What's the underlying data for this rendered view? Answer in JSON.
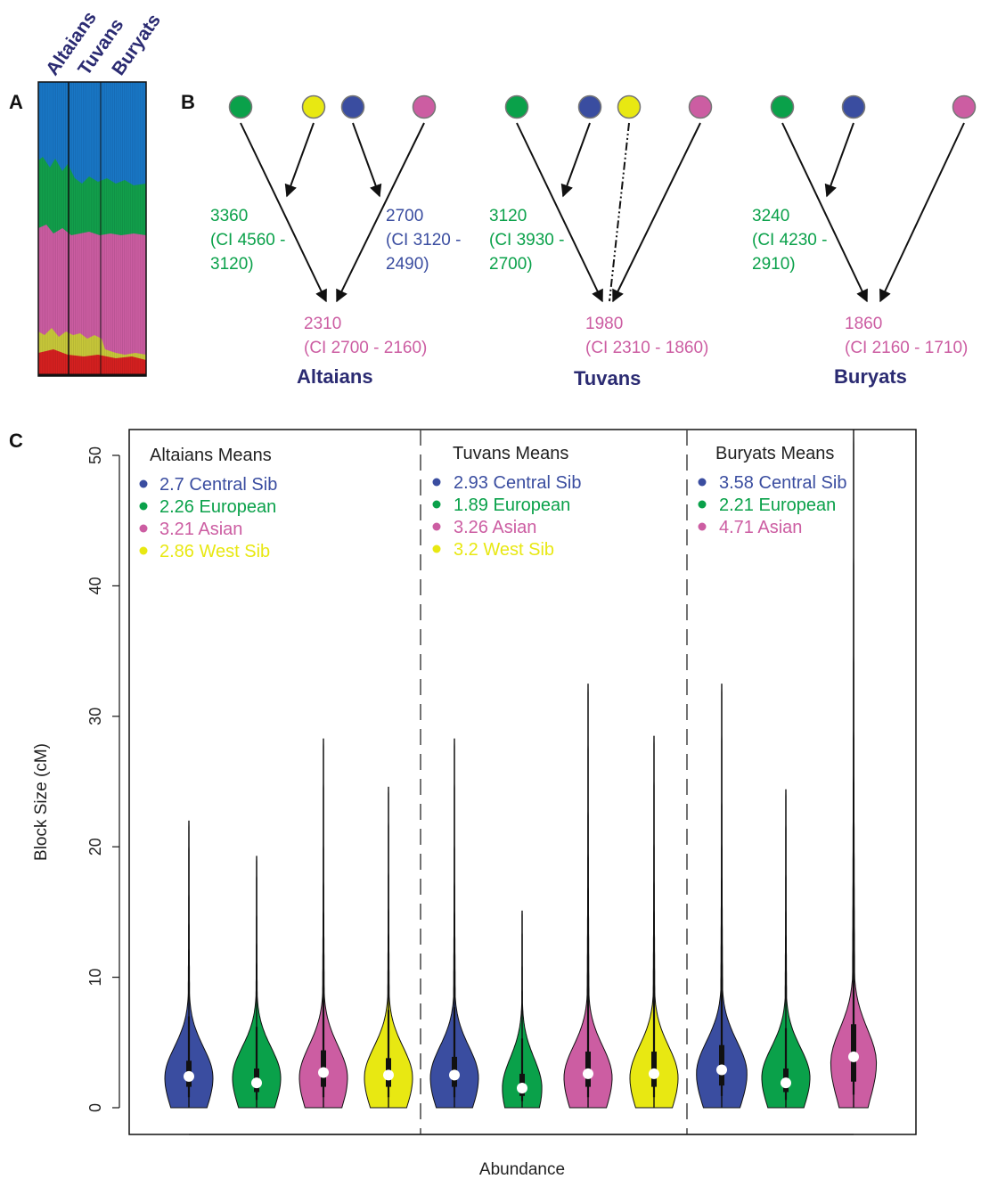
{
  "colors": {
    "central_sib": "#3a4da0",
    "european": "#0aa14a",
    "asian": "#cc5da2",
    "west_sib": "#e8e812",
    "label_navy": "#2b2b72",
    "structure_red": "#d62020"
  },
  "panelA": {
    "letter": "A",
    "population_labels": [
      "Altaians",
      "Tuvans",
      "Buryats"
    ]
  },
  "panelB": {
    "letter": "B",
    "trees": [
      {
        "population": "Altaians",
        "nodes": [
          "european",
          "west_sib",
          "central_sib",
          "asian"
        ],
        "migrations": [
          {
            "label_lines": [
              "3360",
              "(CI 4560 -",
              "3120)"
            ],
            "color_key": "european"
          },
          {
            "label_lines": [
              "2700",
              "(CI 3120 -",
              "2490)"
            ],
            "color_key": "central_sib"
          }
        ],
        "admixture_lines": [
          "2310",
          "(CI 2700 - 2160)"
        ]
      },
      {
        "population": "Tuvans",
        "nodes": [
          "european",
          "central_sib",
          "west_sib",
          "asian"
        ],
        "migrations": [
          {
            "label_lines": [
              "3120",
              "(CI 3930 -",
              "2700)"
            ],
            "color_key": "european"
          }
        ],
        "admixture_lines": [
          "1980",
          "(CI 2310 - 1860)"
        ]
      },
      {
        "population": "Buryats",
        "nodes": [
          "european",
          "central_sib",
          "asian"
        ],
        "migrations": [
          {
            "label_lines": [
              "3240",
              "(CI 4230 -",
              "2910)"
            ],
            "color_key": "european"
          }
        ],
        "admixture_lines": [
          "1860",
          "(CI 2160 - 1710)"
        ]
      }
    ]
  },
  "panelC": {
    "letter": "C"
  },
  "chart_data": {
    "type": "violin",
    "xlabel": "Abundance",
    "ylabel": "Block Size (cM)",
    "ylim": [
      0,
      52
    ],
    "yticks": [
      "0",
      "10",
      "20",
      "30",
      "40",
      "50"
    ],
    "grid": false,
    "groups": [
      {
        "name": "Altaians",
        "legend_title": "Altaians Means",
        "legend": [
          {
            "mean": "2.7",
            "label": "Central Sib",
            "color_key": "central_sib"
          },
          {
            "mean": "2.26",
            "label": "European",
            "color_key": "european"
          },
          {
            "mean": "3.21",
            "label": "Asian",
            "color_key": "asian"
          },
          {
            "mean": "2.86",
            "label": "West Sib",
            "color_key": "west_sib"
          }
        ]
      },
      {
        "name": "Tuvans",
        "legend_title": "Tuvans Means",
        "legend": [
          {
            "mean": "2.93",
            "label": "Central Sib",
            "color_key": "central_sib"
          },
          {
            "mean": "1.89",
            "label": "European",
            "color_key": "european"
          },
          {
            "mean": "3.26",
            "label": "Asian",
            "color_key": "asian"
          },
          {
            "mean": "3.2",
            "label": "West Sib",
            "color_key": "west_sib"
          }
        ]
      },
      {
        "name": "Buryats",
        "legend_title": "Buryats Means",
        "legend": [
          {
            "mean": "3.58",
            "label": "Central Sib",
            "color_key": "central_sib"
          },
          {
            "mean": "2.21",
            "label": "European",
            "color_key": "european"
          },
          {
            "mean": "4.71",
            "label": "Asian",
            "color_key": "asian"
          }
        ]
      }
    ],
    "violins": [
      {
        "group": "Altaians",
        "color_key": "central_sib",
        "min": 0,
        "q1": 1.6,
        "median": 2.4,
        "q3": 3.6,
        "whisker_low": 0.8,
        "whisker_high": 7,
        "max": 22,
        "mode": 2.3,
        "mode_density": 1.0
      },
      {
        "group": "Altaians",
        "color_key": "european",
        "min": 0,
        "q1": 1.2,
        "median": 1.9,
        "q3": 3.0,
        "whisker_low": 0.6,
        "whisker_high": 6.2,
        "max": 19.3,
        "mode": 2.3,
        "mode_density": 1.0
      },
      {
        "group": "Altaians",
        "color_key": "asian",
        "min": 0,
        "q1": 1.6,
        "median": 2.7,
        "q3": 4.4,
        "whisker_low": 0.8,
        "whisker_high": 8.6,
        "max": 28.3,
        "mode": 2.3,
        "mode_density": 1.0
      },
      {
        "group": "Altaians",
        "color_key": "west_sib",
        "min": 0,
        "q1": 1.6,
        "median": 2.5,
        "q3": 3.8,
        "whisker_low": 0.8,
        "whisker_high": 7.5,
        "max": 24.6,
        "mode": 2.3,
        "mode_density": 1.0
      },
      {
        "group": "Tuvans",
        "color_key": "central_sib",
        "min": 0,
        "q1": 1.6,
        "median": 2.5,
        "q3": 3.9,
        "whisker_low": 0.8,
        "whisker_high": 7.7,
        "max": 28.3,
        "mode": 2.3,
        "mode_density": 1.0
      },
      {
        "group": "Tuvans",
        "color_key": "european",
        "min": 0,
        "q1": 0.9,
        "median": 1.5,
        "q3": 2.6,
        "whisker_low": 0.5,
        "whisker_high": 5.3,
        "max": 15.1,
        "mode": 1.5,
        "mode_density": 0.82
      },
      {
        "group": "Tuvans",
        "color_key": "asian",
        "min": 0,
        "q1": 1.6,
        "median": 2.6,
        "q3": 4.3,
        "whisker_low": 0.8,
        "whisker_high": 8.8,
        "max": 32.5,
        "mode": 2.3,
        "mode_density": 1.0
      },
      {
        "group": "Tuvans",
        "color_key": "west_sib",
        "min": 0,
        "q1": 1.6,
        "median": 2.6,
        "q3": 4.3,
        "whisker_low": 0.8,
        "whisker_high": 8.6,
        "max": 28.5,
        "mode": 2.3,
        "mode_density": 1.0
      },
      {
        "group": "Buryats",
        "color_key": "central_sib",
        "min": 0,
        "q1": 1.7,
        "median": 2.9,
        "q3": 4.8,
        "whisker_low": 0.9,
        "whisker_high": 9.3,
        "max": 32.5,
        "mode": 2.6,
        "mode_density": 1.05
      },
      {
        "group": "Buryats",
        "color_key": "european",
        "min": 0,
        "q1": 1.2,
        "median": 1.9,
        "q3": 3.0,
        "whisker_low": 0.6,
        "whisker_high": 6.1,
        "max": 24.4,
        "mode": 2.3,
        "mode_density": 1.0
      },
      {
        "group": "Buryats",
        "color_key": "asian",
        "min": 0,
        "q1": 2.0,
        "median": 3.9,
        "q3": 6.4,
        "whisker_low": 1.0,
        "whisker_high": 12.8,
        "max": 52,
        "mode": 3.4,
        "mode_density": 0.95
      }
    ]
  }
}
